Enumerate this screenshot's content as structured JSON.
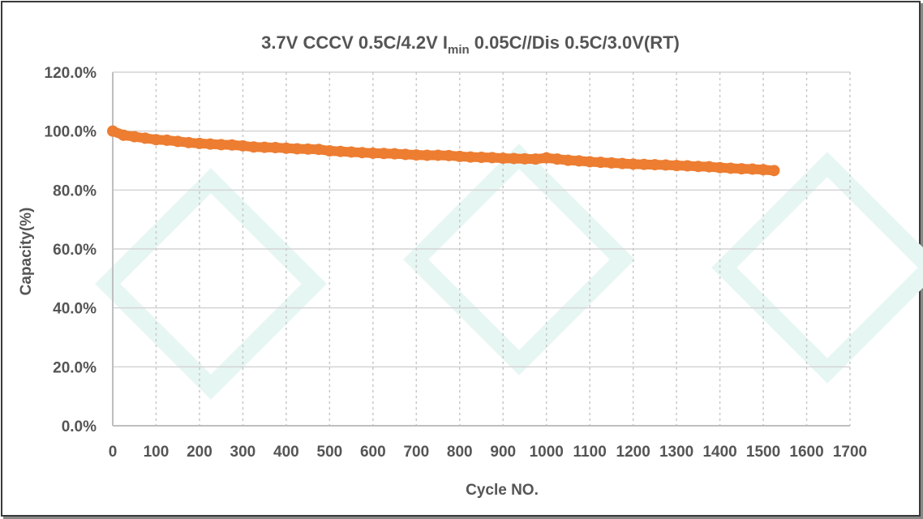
{
  "chart_data": {
    "type": "scatter",
    "title_parts": {
      "pre": "3.7V  CCCV 0.5C/4.2V  I",
      "sub": "min",
      "post": " 0.05C//Dis 0.5C/3.0V(RT)"
    },
    "xlabel": "Cycle NO.",
    "ylabel": "Capacity(%)",
    "xlim": [
      0,
      1700
    ],
    "ylim": [
      0,
      120
    ],
    "xticks": [
      "0",
      "100",
      "200",
      "300",
      "400",
      "500",
      "600",
      "700",
      "800",
      "900",
      "1000",
      "1100",
      "1200",
      "1300",
      "1400",
      "1500",
      "1600",
      "1700"
    ],
    "yticks": [
      "0.0%",
      "20.0%",
      "40.0%",
      "60.0%",
      "80.0%",
      "100.0%",
      "120.0%"
    ],
    "grid": true,
    "legend": "none",
    "color": "#ED7D31",
    "x": [
      0,
      25,
      50,
      75,
      100,
      125,
      150,
      175,
      200,
      225,
      250,
      275,
      300,
      325,
      350,
      375,
      400,
      425,
      450,
      475,
      500,
      525,
      550,
      575,
      600,
      625,
      650,
      675,
      700,
      725,
      750,
      775,
      800,
      825,
      850,
      875,
      900,
      925,
      950,
      975,
      1000,
      1025,
      1050,
      1075,
      1100,
      1125,
      1150,
      1175,
      1200,
      1225,
      1250,
      1275,
      1300,
      1325,
      1350,
      1375,
      1400,
      1425,
      1450,
      1475,
      1500,
      1525
    ],
    "y": [
      100,
      98.6,
      98.1,
      97.6,
      97.1,
      96.9,
      96.5,
      96.1,
      95.8,
      95.6,
      95.4,
      95.3,
      95.0,
      94.6,
      94.5,
      94.4,
      94.2,
      94.0,
      93.9,
      93.8,
      93.3,
      93.1,
      92.9,
      92.7,
      92.5,
      92.4,
      92.3,
      92.1,
      91.9,
      91.8,
      91.8,
      91.7,
      91.4,
      91.2,
      91.1,
      91.0,
      90.8,
      90.7,
      90.6,
      90.5,
      90.9,
      90.5,
      90.1,
      89.9,
      89.6,
      89.4,
      89.2,
      89.0,
      88.8,
      88.7,
      88.6,
      88.5,
      88.3,
      88.2,
      88.0,
      87.9,
      87.6,
      87.4,
      87.2,
      87.1,
      86.9,
      86.6
    ]
  }
}
